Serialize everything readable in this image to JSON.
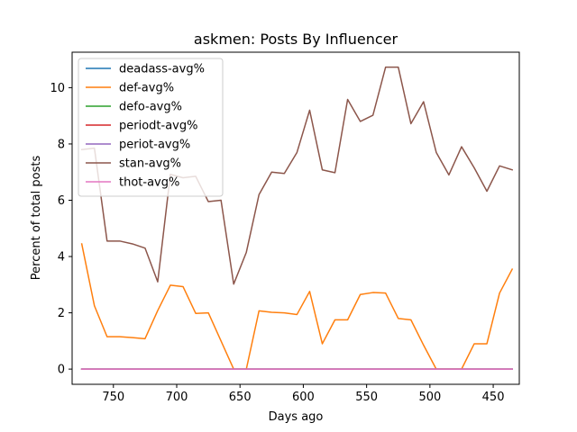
{
  "chart_data": {
    "type": "line",
    "title": "askmen: Posts By Influencer",
    "xlabel": "Days ago",
    "ylabel": "Percent of total posts",
    "x_inverted": true,
    "xlim": [
      782.6,
      429.4
    ],
    "ylim": [
      -0.54,
      11.26
    ],
    "xticks": [
      750,
      700,
      650,
      600,
      550,
      500,
      450
    ],
    "yticks": [
      0,
      2,
      4,
      6,
      8,
      10
    ],
    "grid": false,
    "legend_position": "top-left",
    "x": [
      775,
      765,
      755,
      745,
      735,
      725,
      715,
      705,
      695,
      685,
      675,
      665,
      655,
      645,
      635,
      625,
      615,
      605,
      595,
      585,
      575,
      565,
      555,
      545,
      535,
      525,
      515,
      505,
      495,
      485,
      475,
      465,
      455,
      445,
      435
    ],
    "series": [
      {
        "name": "deadass-avg%",
        "color": "#1f77b4",
        "values": [
          0,
          0,
          0,
          0,
          0,
          0,
          0,
          0,
          0,
          0,
          0,
          0,
          0,
          0,
          0,
          0,
          0,
          0,
          0,
          0,
          0,
          0,
          0,
          0,
          0,
          0,
          0,
          0,
          0,
          0,
          0,
          0,
          0,
          0,
          0
        ]
      },
      {
        "name": "def-avg%",
        "color": "#ff7f0e",
        "values": [
          4.45,
          2.25,
          1.15,
          1.15,
          1.12,
          1.08,
          2.08,
          2.98,
          2.93,
          1.98,
          2.0,
          1.0,
          0.0,
          0.0,
          2.07,
          2.02,
          2.0,
          1.94,
          2.76,
          0.9,
          1.75,
          1.75,
          2.65,
          2.72,
          2.7,
          1.8,
          1.75,
          0.85,
          0.0,
          0.0,
          0.0,
          0.9,
          0.9,
          2.7,
          3.55
        ]
      },
      {
        "name": "defo-avg%",
        "color": "#2ca02c",
        "values": [
          0,
          0,
          0,
          0,
          0,
          0,
          0,
          0,
          0,
          0,
          0,
          0,
          0,
          0,
          0,
          0,
          0,
          0,
          0,
          0,
          0,
          0,
          0,
          0,
          0,
          0,
          0,
          0,
          0,
          0,
          0,
          0,
          0,
          0,
          0
        ]
      },
      {
        "name": "periodt-avg%",
        "color": "#d62728",
        "values": [
          0,
          0,
          0,
          0,
          0,
          0,
          0,
          0,
          0,
          0,
          0,
          0,
          0,
          0,
          0,
          0,
          0,
          0,
          0,
          0,
          0,
          0,
          0,
          0,
          0,
          0,
          0,
          0,
          0,
          0,
          0,
          0,
          0,
          0,
          0
        ]
      },
      {
        "name": "periot-avg%",
        "color": "#9467bd",
        "values": [
          0,
          0,
          0,
          0,
          0,
          0,
          0,
          0,
          0,
          0,
          0,
          0,
          0,
          0,
          0,
          0,
          0,
          0,
          0,
          0,
          0,
          0,
          0,
          0,
          0,
          0,
          0,
          0,
          0,
          0,
          0,
          0,
          0,
          0,
          0
        ]
      },
      {
        "name": "stan-avg%",
        "color": "#8c564b",
        "values": [
          7.8,
          7.85,
          4.55,
          4.55,
          4.45,
          4.3,
          3.1,
          6.92,
          6.8,
          6.85,
          5.95,
          6.0,
          3.02,
          4.15,
          6.2,
          7.0,
          6.95,
          7.7,
          9.2,
          7.08,
          6.98,
          9.58,
          8.8,
          9.02,
          10.73,
          10.73,
          8.72,
          9.5,
          7.7,
          6.9,
          7.9,
          7.15,
          6.32,
          7.22,
          7.08
        ]
      },
      {
        "name": "thot-avg%",
        "color": "#e377c2",
        "values": [
          0,
          0,
          0,
          0,
          0,
          0,
          0,
          0,
          0,
          0,
          0,
          0,
          0,
          0,
          0,
          0,
          0,
          0,
          0,
          0,
          0,
          0,
          0,
          0,
          0,
          0,
          0,
          0,
          0,
          0,
          0,
          0,
          0,
          0,
          0
        ]
      }
    ]
  }
}
